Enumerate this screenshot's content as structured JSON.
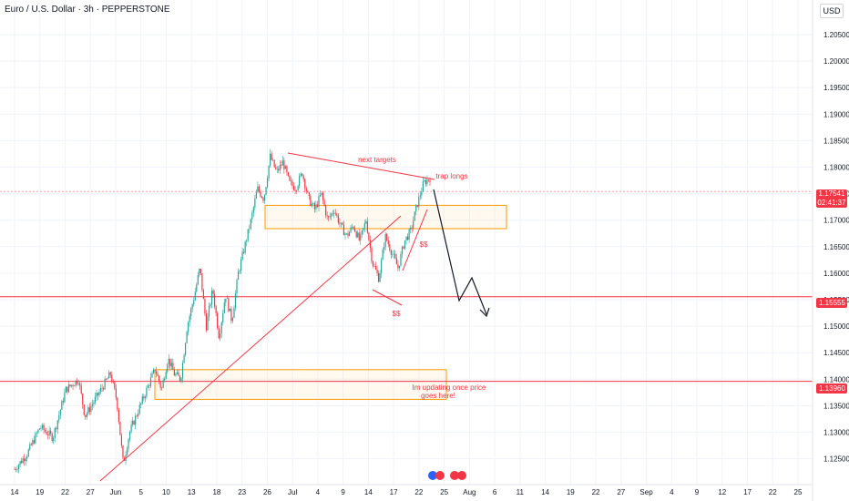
{
  "header": {
    "title": "Euro / U.S. Dollar · 3h · PEPPERSTONE",
    "currency": "USD"
  },
  "colors": {
    "bull": "#26a69a",
    "bear": "#f23645",
    "annotation": "#f23645",
    "zone": "#ff9800",
    "grid": "#f0f3fa",
    "black_arrow": "#131722"
  },
  "price_labels": {
    "current": "1.17541",
    "countdown": "02:41:37",
    "level_a": "1.15555",
    "level_b": "1.13960"
  },
  "chart_data": {
    "type": "candlestick",
    "symbol": "EURUSD",
    "timeframe": "3h",
    "y_axis": {
      "ticks": [
        "1.20500",
        "1.20000",
        "1.19500",
        "1.19000",
        "1.18500",
        "1.18000",
        "1.17500",
        "1.17000",
        "1.16500",
        "1.16000",
        "1.15500",
        "1.15000",
        "1.14500",
        "1.14000",
        "1.13500",
        "1.13000",
        "1.12500"
      ],
      "range": [
        1.121,
        1.2095
      ]
    },
    "x_axis": {
      "ticks": [
        "14",
        "19",
        "22",
        "27",
        "Jun",
        "5",
        "10",
        "13",
        "18",
        "23",
        "26",
        "Jul",
        "4",
        "9",
        "14",
        "17",
        "22",
        "25",
        "Aug",
        "6",
        "11",
        "14",
        "19",
        "22",
        "27",
        "Sep",
        "4",
        "9",
        "12",
        "17",
        "22",
        "25"
      ]
    },
    "price_path": [
      [
        0,
        1.123
      ],
      [
        2,
        1.126
      ],
      [
        4,
        1.131
      ],
      [
        6,
        1.129
      ],
      [
        8,
        1.138
      ],
      [
        10,
        1.14
      ],
      [
        11,
        1.133
      ],
      [
        13,
        1.137
      ],
      [
        15,
        1.141
      ],
      [
        16,
        1.136
      ],
      [
        17,
        1.124
      ],
      [
        18,
        1.13
      ],
      [
        20,
        1.136
      ],
      [
        22,
        1.142
      ],
      [
        23,
        1.138
      ],
      [
        24,
        1.144
      ],
      [
        25,
        1.141
      ],
      [
        26,
        1.14
      ],
      [
        27,
        1.15
      ],
      [
        28,
        1.155
      ],
      [
        29,
        1.161
      ],
      [
        30,
        1.15
      ],
      [
        31,
        1.157
      ],
      [
        32,
        1.148
      ],
      [
        33,
        1.156
      ],
      [
        34,
        1.151
      ],
      [
        35,
        1.16
      ],
      [
        36,
        1.165
      ],
      [
        37,
        1.17
      ],
      [
        38,
        1.176
      ],
      [
        39,
        1.174
      ],
      [
        40,
        1.182
      ],
      [
        41,
        1.179
      ],
      [
        42,
        1.181
      ],
      [
        43,
        1.177
      ],
      [
        44,
        1.176
      ],
      [
        45,
        1.179
      ],
      [
        46,
        1.174
      ],
      [
        47,
        1.172
      ],
      [
        48,
        1.175
      ],
      [
        49,
        1.17
      ],
      [
        50,
        1.172
      ],
      [
        51,
        1.169
      ],
      [
        52,
        1.167
      ],
      [
        53,
        1.169
      ],
      [
        54,
        1.166
      ],
      [
        55,
        1.17
      ],
      [
        56,
        1.162
      ],
      [
        57,
        1.159
      ],
      [
        58,
        1.167
      ],
      [
        59,
        1.164
      ],
      [
        60,
        1.161
      ],
      [
        61,
        1.166
      ],
      [
        62,
        1.168
      ],
      [
        63,
        1.173
      ],
      [
        64,
        1.177
      ],
      [
        65,
        1.178
      ]
    ],
    "zones": [
      {
        "name": "upper-zone",
        "top": 1.1728,
        "bottom": 1.1684
      },
      {
        "name": "lower-zone",
        "top": 1.1418,
        "bottom": 1.1362
      }
    ],
    "horizontal_levels": [
      1.17541,
      1.15555,
      1.1396
    ],
    "annotations": {
      "next_targets": "next targets",
      "trap_longs": "trap longs",
      "ss_upper": "$$",
      "ss_lower": "$$",
      "note_line1": "Im updating once price",
      "note_line2": "goes here!"
    },
    "grid": true
  }
}
